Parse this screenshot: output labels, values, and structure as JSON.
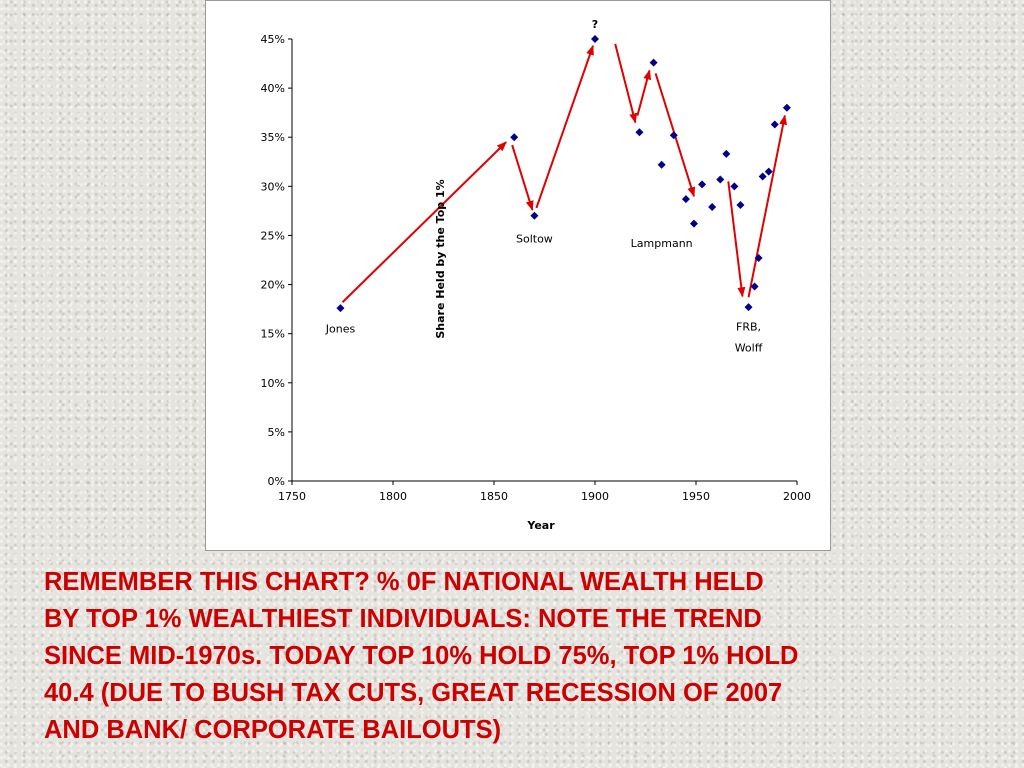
{
  "chart_data": {
    "type": "scatter",
    "xlabel": "Year",
    "ylabel": "Share Held by the Top 1%",
    "xlim": [
      1750,
      2000
    ],
    "ylim": [
      0,
      45
    ],
    "x_ticks": [
      "1750",
      "1800",
      "1850",
      "1900",
      "1950",
      "2000"
    ],
    "y_ticks": [
      "0%",
      "5%",
      "10%",
      "15%",
      "20%",
      "25%",
      "30%",
      "35%",
      "40%",
      "45%"
    ],
    "point_color": "#00008b",
    "arrow_color": "#e00000",
    "points": [
      {
        "x": 1774,
        "y": 17.6
      },
      {
        "x": 1860,
        "y": 35.0
      },
      {
        "x": 1870,
        "y": 27.0
      },
      {
        "x": 1900,
        "y": 45.0
      },
      {
        "x": 1922,
        "y": 35.5
      },
      {
        "x": 1929,
        "y": 42.6
      },
      {
        "x": 1933,
        "y": 32.2
      },
      {
        "x": 1939,
        "y": 35.2
      },
      {
        "x": 1945,
        "y": 28.7
      },
      {
        "x": 1949,
        "y": 26.2
      },
      {
        "x": 1953,
        "y": 30.2
      },
      {
        "x": 1958,
        "y": 27.9
      },
      {
        "x": 1962,
        "y": 30.7
      },
      {
        "x": 1965,
        "y": 33.3
      },
      {
        "x": 1969,
        "y": 30.0
      },
      {
        "x": 1972,
        "y": 28.1
      },
      {
        "x": 1976,
        "y": 17.7
      },
      {
        "x": 1979,
        "y": 19.8
      },
      {
        "x": 1981,
        "y": 22.7
      },
      {
        "x": 1983,
        "y": 31.0
      },
      {
        "x": 1986,
        "y": 31.5
      },
      {
        "x": 1989,
        "y": 36.3
      },
      {
        "x": 1995,
        "y": 38.0
      }
    ],
    "arrows": [
      {
        "from": [
          1775,
          18.2
        ],
        "to": [
          1856,
          34.5
        ]
      },
      {
        "from": [
          1859,
          34.2
        ],
        "to": [
          1869,
          27.6
        ]
      },
      {
        "from": [
          1871,
          27.8
        ],
        "to": [
          1899,
          44.3
        ]
      },
      {
        "from": [
          1910,
          44.5
        ],
        "to": [
          1920,
          36.5
        ]
      },
      {
        "from": [
          1921,
          37.2
        ],
        "to": [
          1927,
          41.8
        ]
      },
      {
        "from": [
          1930,
          41.5
        ],
        "to": [
          1949,
          29.0
        ]
      },
      {
        "from": [
          1966,
          30.5
        ],
        "to": [
          1973,
          18.8
        ]
      },
      {
        "from": [
          1976,
          18.7
        ],
        "to": [
          1994,
          37.2
        ]
      }
    ],
    "annotations": [
      {
        "text": "Jones",
        "x": 1774,
        "y": 15.1
      },
      {
        "text": "Soltow",
        "x": 1870,
        "y": 24.3
      },
      {
        "text": "Lampmann",
        "x": 1933,
        "y": 23.8
      },
      {
        "text": "?",
        "x": 1900,
        "y": 46.1
      },
      {
        "text": "FRB,",
        "x": 1976,
        "y": 15.3
      },
      {
        "text": "Wolff",
        "x": 1976,
        "y": 13.2
      }
    ]
  },
  "caption_lines": [
    "REMEMBER THIS CHART?  % 0F NATIONAL WEALTH HELD",
    "BY TOP 1% WEALTHIEST INDIVIDUALS:  NOTE THE TREND",
    "SINCE MID-1970s. TODAY TOP 10% HOLD 75%, TOP 1% HOLD",
    "40.4 (DUE TO BUSH TAX CUTS, GREAT RECESSION OF 2007",
    "AND BANK/ CORPORATE BAILOUTS)"
  ]
}
